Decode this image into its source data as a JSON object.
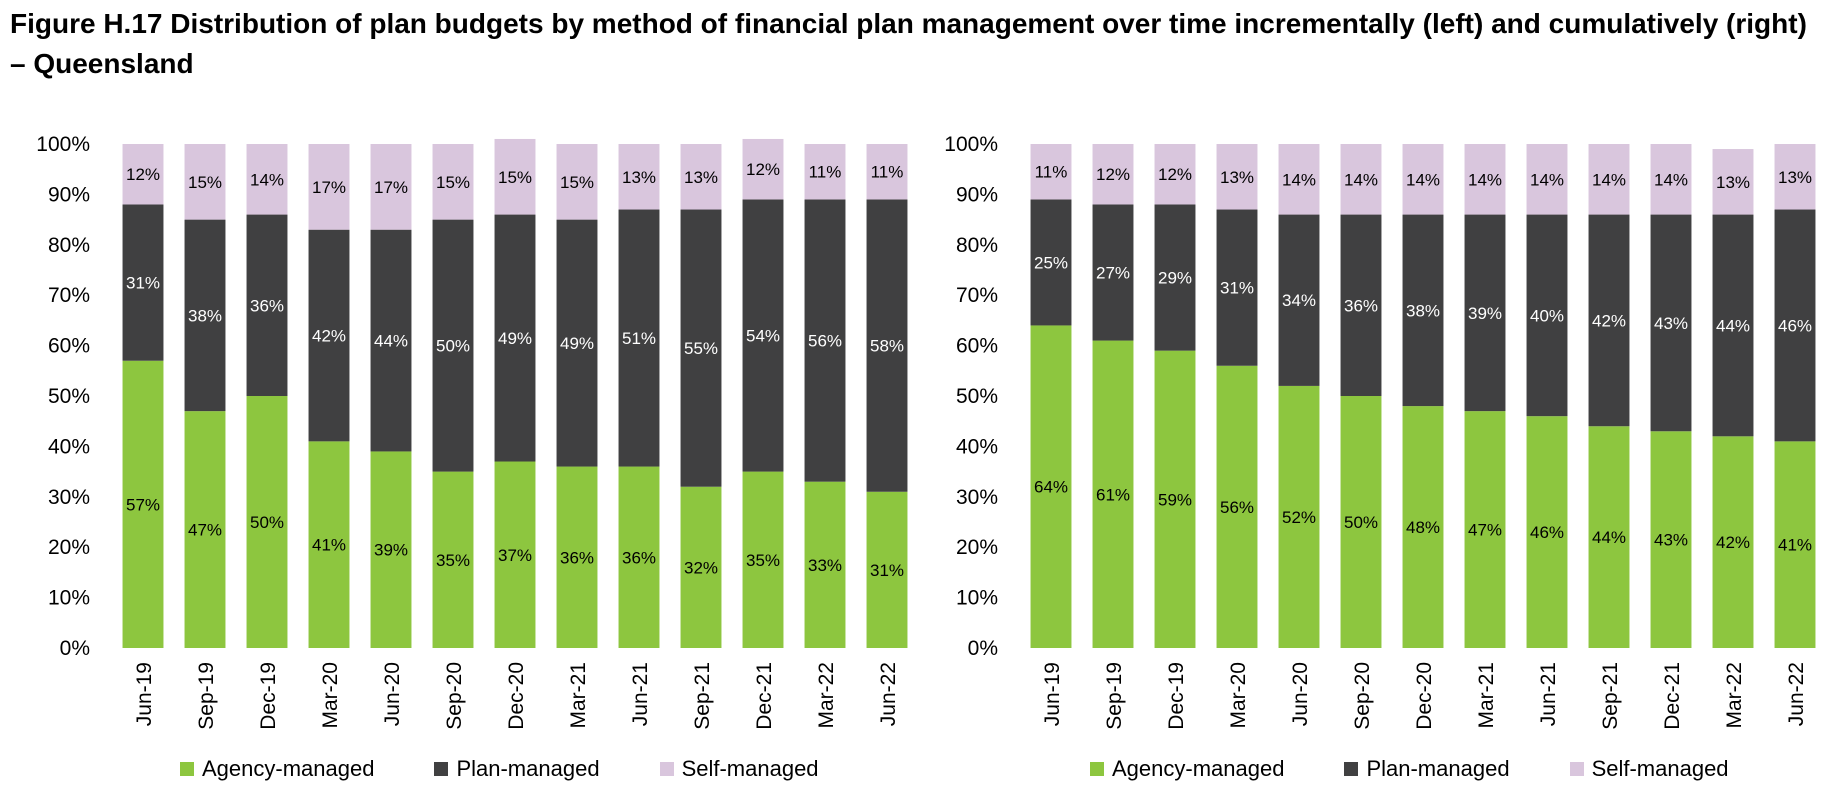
{
  "title": "Figure H.17 Distribution of plan budgets by method of financial plan management over time incrementally (left) and cumulatively (right) – Queensland",
  "colors": {
    "agency": "#8dc63f",
    "plan": "#404041",
    "self": "#d9c6dd"
  },
  "legend": [
    "Agency-managed",
    "Plan-managed",
    "Self-managed"
  ],
  "chart_data": [
    {
      "type": "bar",
      "stacked": true,
      "panel": "left",
      "categories": [
        "Jun-19",
        "Sep-19",
        "Dec-19",
        "Mar-20",
        "Jun-20",
        "Sep-20",
        "Dec-20",
        "Mar-21",
        "Jun-21",
        "Sep-21",
        "Dec-21",
        "Mar-22",
        "Jun-22"
      ],
      "series": [
        {
          "name": "Agency-managed",
          "values": [
            57,
            47,
            50,
            41,
            39,
            35,
            37,
            36,
            36,
            32,
            35,
            33,
            31
          ]
        },
        {
          "name": "Plan-managed",
          "values": [
            31,
            38,
            36,
            42,
            44,
            50,
            49,
            49,
            51,
            55,
            54,
            56,
            58
          ]
        },
        {
          "name": "Self-managed",
          "values": [
            12,
            15,
            14,
            17,
            17,
            15,
            15,
            15,
            13,
            13,
            12,
            11,
            11
          ]
        }
      ],
      "yticks": [
        "0%",
        "10%",
        "20%",
        "30%",
        "40%",
        "50%",
        "60%",
        "70%",
        "80%",
        "90%",
        "100%"
      ],
      "ylim": [
        0,
        100
      ],
      "legend_position": "bottom"
    },
    {
      "type": "bar",
      "stacked": true,
      "panel": "right",
      "categories": [
        "Jun-19",
        "Sep-19",
        "Dec-19",
        "Mar-20",
        "Jun-20",
        "Sep-20",
        "Dec-20",
        "Mar-21",
        "Jun-21",
        "Sep-21",
        "Dec-21",
        "Mar-22",
        "Jun-22"
      ],
      "series": [
        {
          "name": "Agency-managed",
          "values": [
            64,
            61,
            59,
            56,
            52,
            50,
            48,
            47,
            46,
            44,
            43,
            42,
            41
          ]
        },
        {
          "name": "Plan-managed",
          "values": [
            25,
            27,
            29,
            31,
            34,
            36,
            38,
            39,
            40,
            42,
            43,
            44,
            46
          ]
        },
        {
          "name": "Self-managed",
          "values": [
            11,
            12,
            12,
            13,
            14,
            14,
            14,
            14,
            14,
            14,
            14,
            13,
            13
          ]
        }
      ],
      "yticks": [
        "0%",
        "10%",
        "20%",
        "30%",
        "40%",
        "50%",
        "60%",
        "70%",
        "80%",
        "90%",
        "100%"
      ],
      "ylim": [
        0,
        100
      ],
      "legend_position": "bottom"
    }
  ]
}
